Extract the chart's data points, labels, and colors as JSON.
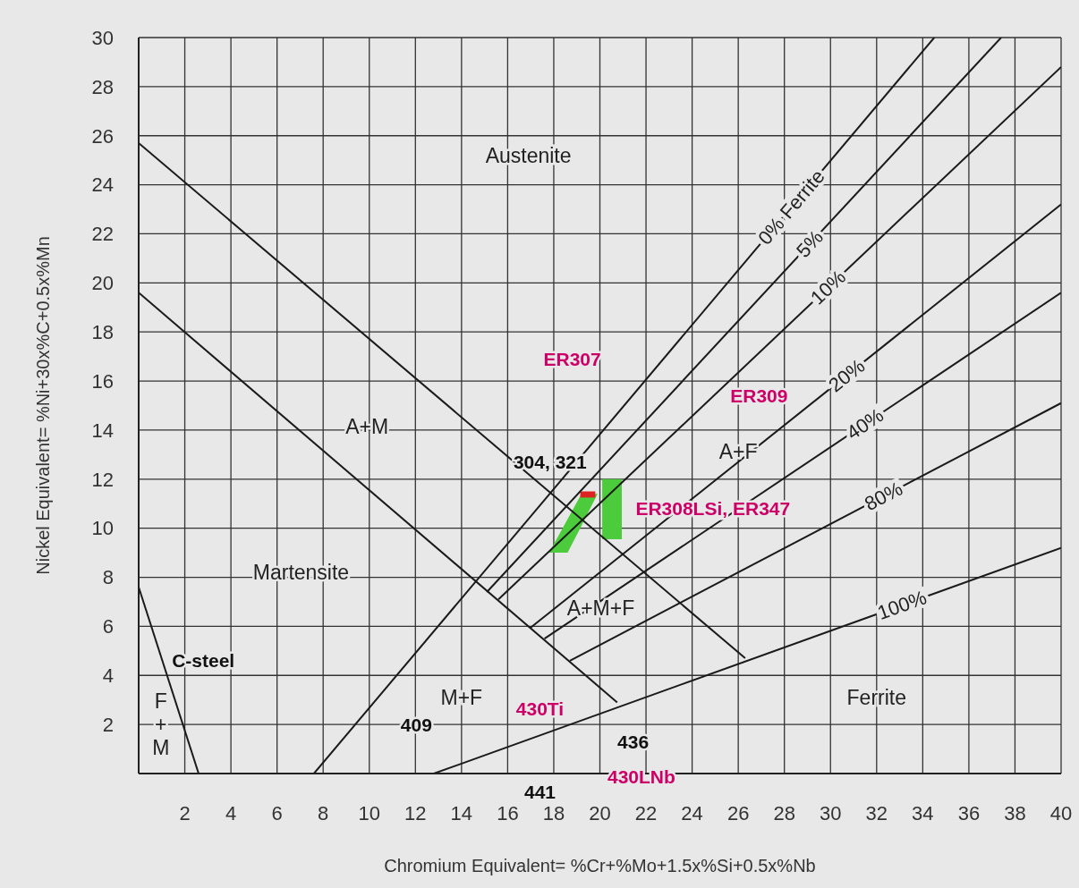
{
  "chart_data": {
    "type": "line",
    "xlabel": "Chromium Equivalent= %Cr+%Mo+1.5x%Si+0.5x%Nb",
    "ylabel": "Nickel Equivalent= %Ni+30x%C+0.5x%Mn",
    "xlim": [
      0,
      40
    ],
    "ylim": [
      0,
      30
    ],
    "xticks": [
      2,
      4,
      6,
      8,
      10,
      12,
      14,
      16,
      18,
      20,
      22,
      24,
      26,
      28,
      30,
      32,
      34,
      36,
      38,
      40
    ],
    "yticks": [
      2,
      4,
      6,
      8,
      10,
      12,
      14,
      16,
      18,
      20,
      22,
      24,
      26,
      28,
      30
    ],
    "grid": true,
    "marker": "none",
    "series": [
      {
        "type": "line",
        "color": "#1a1a1a",
        "x": [
          0,
          26.3
        ],
        "values": [
          25.7,
          4.7
        ]
      },
      {
        "type": "line",
        "color": "#1a1a1a",
        "x": [
          0,
          20.75
        ],
        "values": [
          19.6,
          2.9
        ]
      },
      {
        "type": "line",
        "color": "#1a1a1a",
        "x": [
          0,
          2.6
        ],
        "values": [
          7.6,
          0
        ]
      },
      {
        "type": "line",
        "name": "0% Ferrite",
        "color": "#1a1a1a",
        "x": [
          7.6,
          34.5
        ],
        "values": [
          0,
          30
        ]
      },
      {
        "type": "line",
        "name": "5%",
        "color": "#1a1a1a",
        "x": [
          15.1,
          37.4
        ],
        "values": [
          7.4,
          30
        ]
      },
      {
        "type": "line",
        "name": "10%",
        "color": "#1a1a1a",
        "x": [
          15.6,
          40
        ],
        "values": [
          7.1,
          28.8
        ]
      },
      {
        "type": "line",
        "name": "20%",
        "color": "#1a1a1a",
        "x": [
          17,
          40
        ],
        "values": [
          5.95,
          23.2
        ]
      },
      {
        "type": "line",
        "name": "40%",
        "color": "#1a1a1a",
        "x": [
          17.6,
          40
        ],
        "values": [
          5.5,
          19.6
        ]
      },
      {
        "type": "line",
        "name": "80%",
        "color": "#1a1a1a",
        "x": [
          18.7,
          40
        ],
        "values": [
          4.6,
          15.1
        ]
      },
      {
        "type": "line",
        "name": "100%",
        "color": "#1a1a1a",
        "x": [
          12.8,
          40
        ],
        "values": [
          0,
          9.2
        ]
      },
      {
        "type": "area",
        "color": "#4ccc3c",
        "x": [
          17.8,
          18.6,
          19.2,
          19.9
        ],
        "values": [
          null,
          null,
          null,
          null
        ],
        "lower": [
          9,
          9,
          10.1,
          11.4
        ],
        "upper": [
          9,
          10.37,
          11.4,
          11.4
        ]
      },
      {
        "type": "area",
        "color": "#4ccc3c",
        "x": [
          20.1,
          20.95
        ],
        "values": [
          null,
          null
        ],
        "lower": [
          9.55,
          9.55
        ],
        "upper": [
          12,
          12
        ]
      },
      {
        "type": "area",
        "color": "#dd2222",
        "x": [
          19.15,
          19.8
        ],
        "values": [
          null,
          null
        ],
        "lower": [
          11.25,
          11.25
        ],
        "upper": [
          11.5,
          11.5
        ]
      }
    ],
    "annotations": [
      "Austenite",
      "A+M",
      "Martensite",
      "A+F",
      "A+M+F",
      "M+F",
      "Ferrite",
      "F + M",
      "441",
      "ER307",
      "ER309",
      "ER308LSi, ER347",
      "430Ti",
      "430LNb",
      "304, 321",
      "C-steel",
      "409",
      "436"
    ]
  }
}
